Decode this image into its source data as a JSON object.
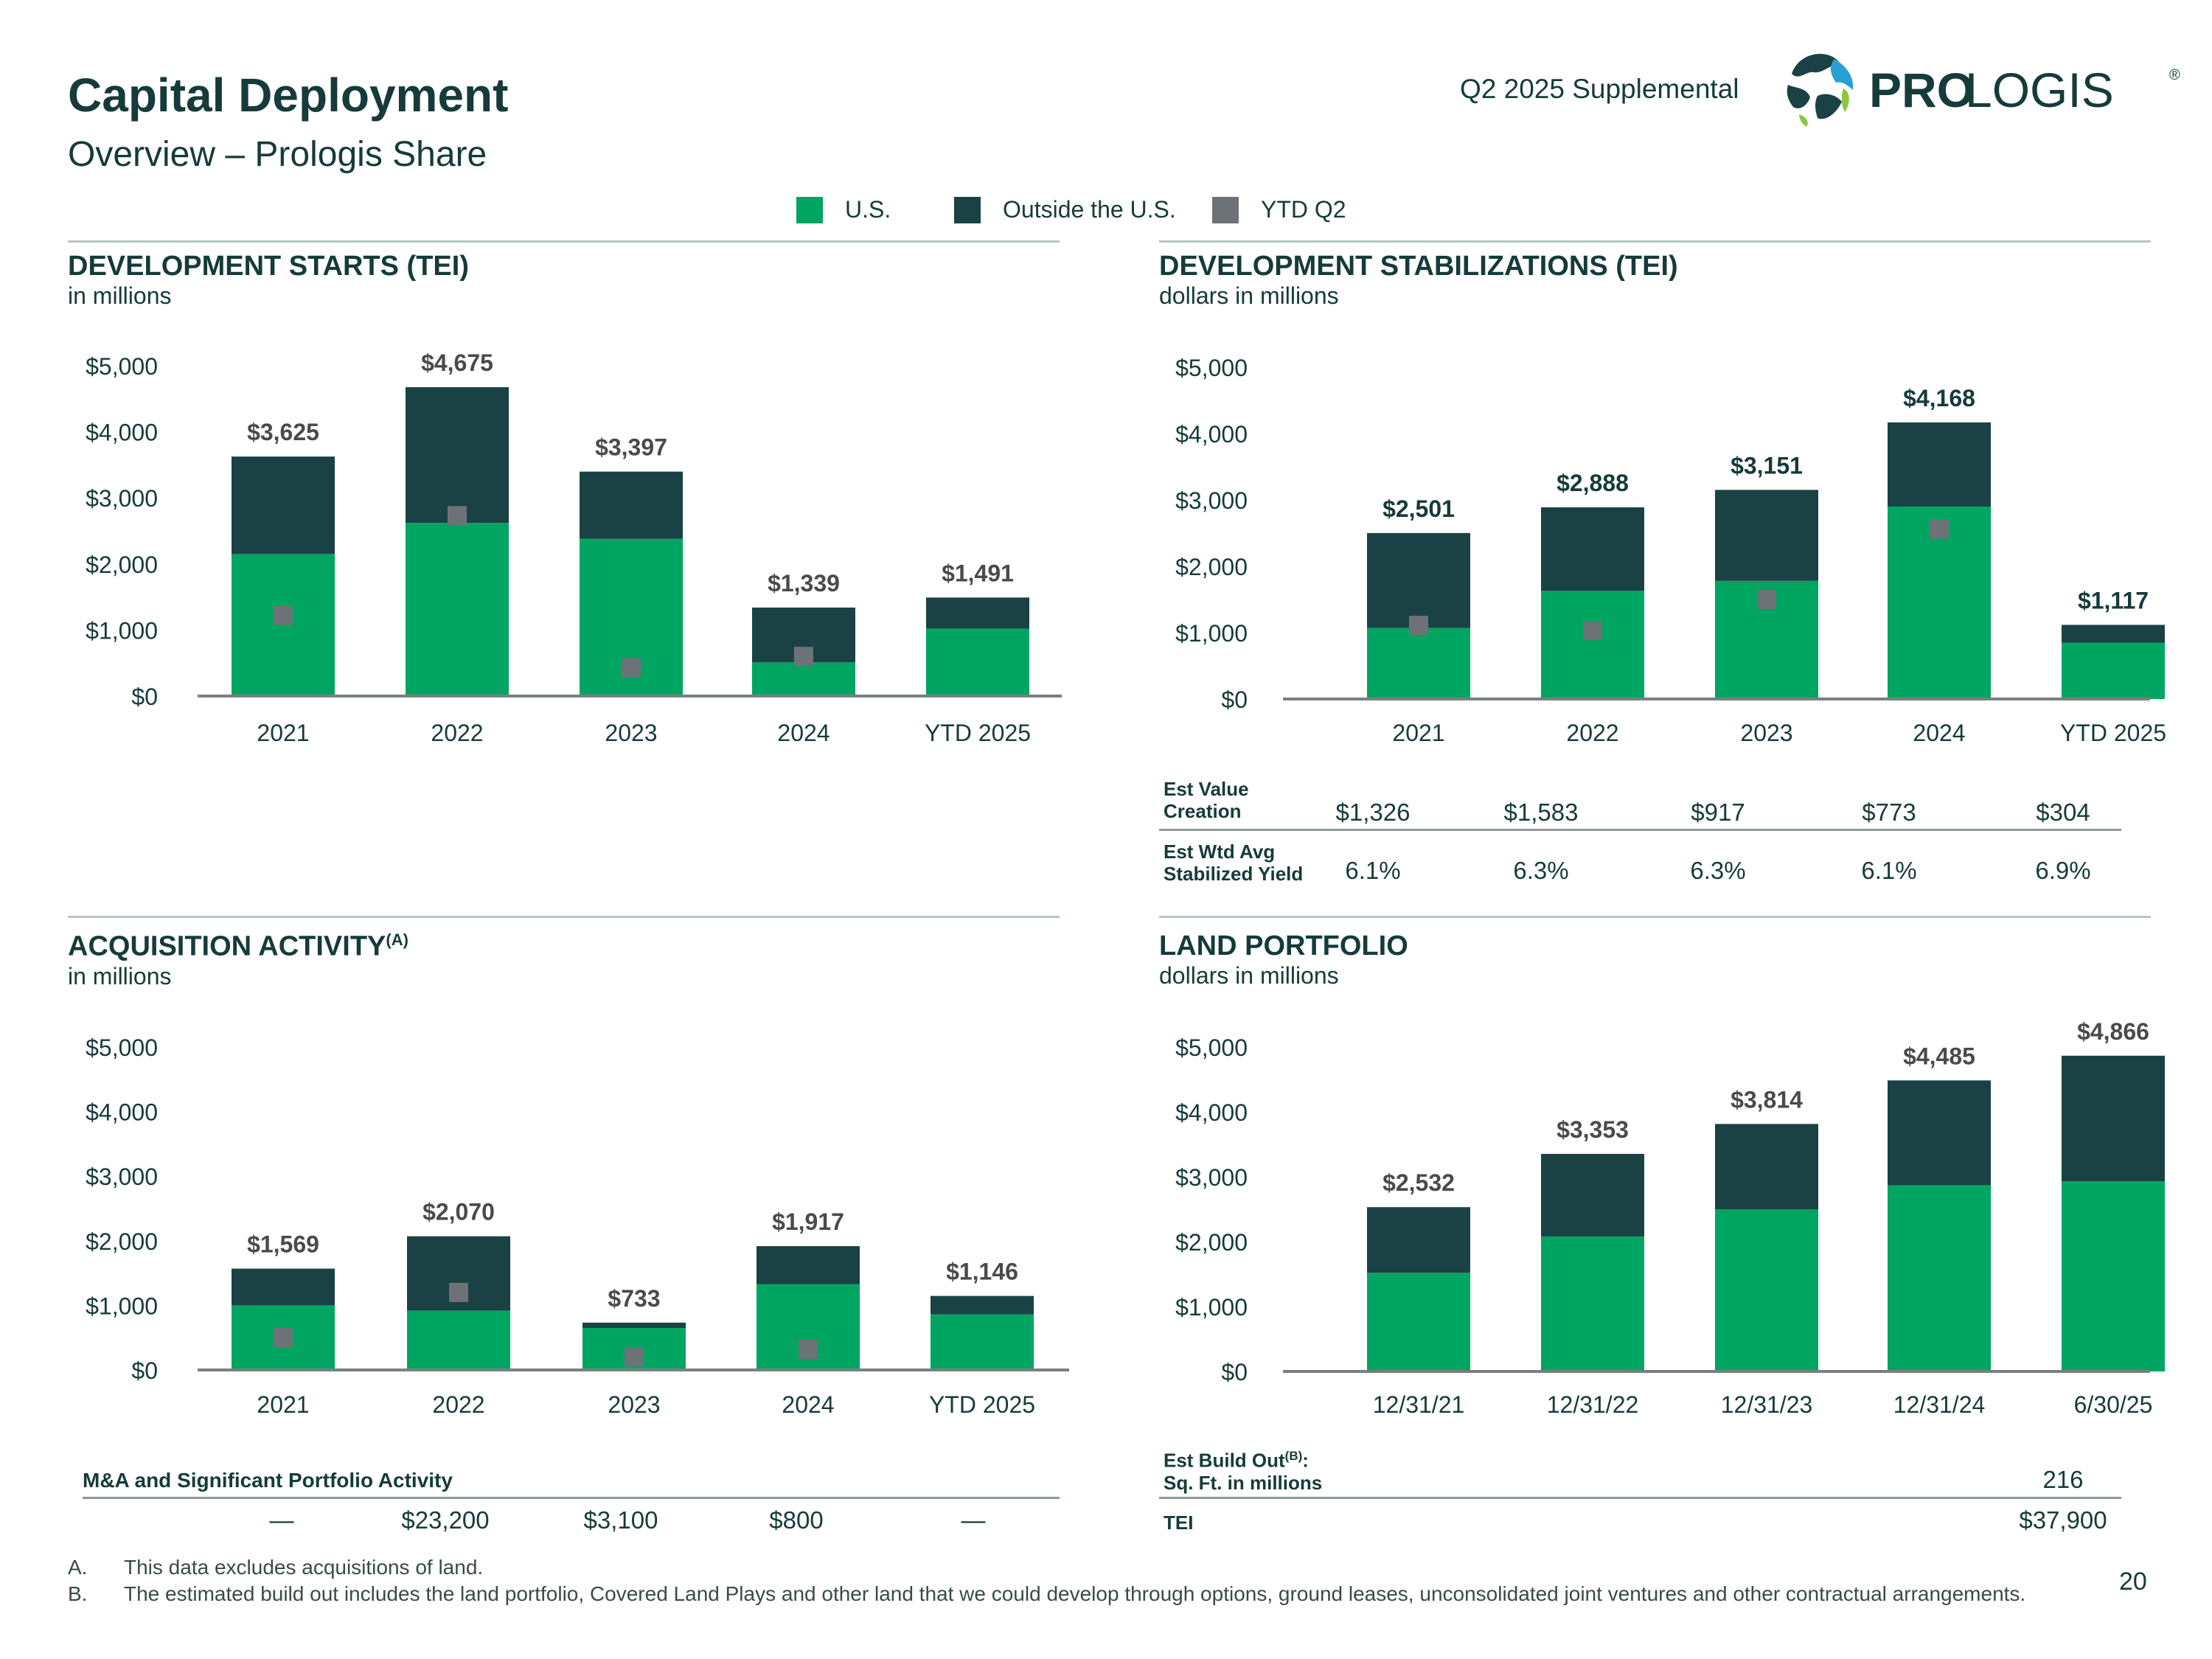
{
  "header": {
    "title": "Capital Deployment",
    "subtitle": "Overview – Prologis Share",
    "supplemental": "Q2 2025 Supplemental",
    "logo_text_bold": "PRO",
    "logo_text_light": "LOGIS",
    "logo_mark": "®"
  },
  "legend": {
    "items": [
      {
        "label": "U.S.",
        "color": "#00a562"
      },
      {
        "label": "Outside the U.S.",
        "color": "#1a4244"
      },
      {
        "label": "YTD Q2",
        "color": "#6d7277"
      }
    ]
  },
  "sections": {
    "starts": {
      "title": "DEVELOPMENT STARTS (TEI)",
      "sub": "in millions"
    },
    "stabilizations": {
      "title": "DEVELOPMENT STABILIZATIONS (TEI)",
      "sub": "dollars in millions"
    },
    "acquisition": {
      "title": "ACQUISITION ACTIVITY",
      "sup": "(A)",
      "sub": "in millions"
    },
    "land": {
      "title": "LAND PORTFOLIO",
      "sub": "dollars in millions"
    }
  },
  "chart_data": [
    {
      "id": "starts",
      "type": "bar",
      "stacked": true,
      "title": "DEVELOPMENT STARTS (TEI)",
      "ylim": [
        0,
        5000
      ],
      "yticks": [
        "$0",
        "$1,000",
        "$2,000",
        "$3,000",
        "$4,000",
        "$5,000"
      ],
      "categories": [
        "2021",
        "2022",
        "2023",
        "2024",
        "YTD 2025"
      ],
      "series": [
        {
          "name": "U.S.",
          "values": [
            2150,
            2620,
            2380,
            510,
            1020
          ]
        },
        {
          "name": "Outside the U.S.",
          "values": [
            1475,
            2055,
            1017,
            829,
            471
          ]
        }
      ],
      "ytd_q2": [
        1220,
        2730,
        430,
        600,
        null
      ],
      "totals": [
        "$3,625",
        "$4,675",
        "$3,397",
        "$1,339",
        "$1,491"
      ]
    },
    {
      "id": "stabilizations",
      "type": "bar",
      "stacked": true,
      "title": "DEVELOPMENT STABILIZATIONS (TEI)",
      "ylim": [
        0,
        5000
      ],
      "yticks": [
        "$0",
        "$1,000",
        "$2,000",
        "$3,000",
        "$4,000",
        "$5,000"
      ],
      "categories": [
        "2021",
        "2022",
        "2023",
        "2024",
        "YTD 2025"
      ],
      "series": [
        {
          "name": "U.S.",
          "values": [
            1070,
            1630,
            1780,
            2900,
            850
          ]
        },
        {
          "name": "Outside the U.S.",
          "values": [
            1431,
            1258,
            1371,
            1268,
            267
          ]
        }
      ],
      "ytd_q2": [
        1110,
        1030,
        1500,
        2560,
        null
      ],
      "totals": [
        "$2,501",
        "$2,888",
        "$3,151",
        "$4,168",
        "$1,117"
      ]
    },
    {
      "id": "acquisition",
      "type": "bar",
      "stacked": true,
      "title": "ACQUISITION ACTIVITY",
      "ylim": [
        0,
        5000
      ],
      "yticks": [
        "$0",
        "$1,000",
        "$2,000",
        "$3,000",
        "$4,000",
        "$5,000"
      ],
      "categories": [
        "2021",
        "2022",
        "2023",
        "2024",
        "YTD 2025"
      ],
      "series": [
        {
          "name": "U.S.",
          "values": [
            1000,
            920,
            650,
            1330,
            860
          ]
        },
        {
          "name": "Outside the U.S.",
          "values": [
            569,
            1150,
            83,
            587,
            286
          ]
        }
      ],
      "ytd_q2": [
        500,
        1200,
        200,
        320,
        null
      ],
      "totals": [
        "$1,569",
        "$2,070",
        "$733",
        "$1,917",
        "$1,146"
      ]
    },
    {
      "id": "land",
      "type": "bar",
      "stacked": true,
      "title": "LAND PORTFOLIO",
      "ylim": [
        0,
        5000
      ],
      "yticks": [
        "$0",
        "$1,000",
        "$2,000",
        "$3,000",
        "$4,000",
        "$5,000"
      ],
      "categories": [
        "12/31/21",
        "12/31/22",
        "12/31/23",
        "12/31/24",
        "6/30/25"
      ],
      "series": [
        {
          "name": "U.S.",
          "values": [
            1520,
            2080,
            2500,
            2870,
            2930
          ]
        },
        {
          "name": "Outside the U.S.",
          "values": [
            1012,
            1273,
            1314,
            1615,
            1936
          ]
        }
      ],
      "ytd_q2": [
        null,
        null,
        null,
        null,
        null
      ],
      "totals": [
        "$2,532",
        "$3,353",
        "$3,814",
        "$4,485",
        "$4,866"
      ]
    }
  ],
  "stab_table": {
    "rows": [
      {
        "label_line1": "Est Value",
        "label_line2": "Creation",
        "values": [
          "$1,326",
          "$1,583",
          "$917",
          "$773",
          "$304"
        ]
      },
      {
        "label_line1": "Est Wtd Avg",
        "label_line2": "Stabilized Yield",
        "values": [
          "6.1%",
          "6.3%",
          "6.3%",
          "6.1%",
          "6.9%"
        ]
      }
    ]
  },
  "ma_table": {
    "label": "M&A and Significant Portfolio Activity",
    "values": [
      "—",
      "$23,200",
      "$3,100",
      "$800",
      "—"
    ]
  },
  "land_table": {
    "build_label_line1": "Est Build Out",
    "build_label_sup": "(B)",
    "build_label_colon": ":",
    "build_label_line2": "Sq. Ft. in millions",
    "build_value": "216",
    "tei_label": "TEI",
    "tei_value": "$37,900"
  },
  "footnotes": [
    {
      "letter": "A.",
      "text": "This data excludes acquisitions of land."
    },
    {
      "letter": "B.",
      "text": "The estimated build out includes the land portfolio, Covered Land Plays and other land that we could develop through options, ground leases, unconsolidated joint ventures and other contractual arrangements."
    }
  ],
  "page_number": "20",
  "colors": {
    "us": "#00a562",
    "outside": "#1a4244",
    "ytd": "#6d7277",
    "total_dark": "#153b3a",
    "total_grey": "#4a4a4a"
  }
}
